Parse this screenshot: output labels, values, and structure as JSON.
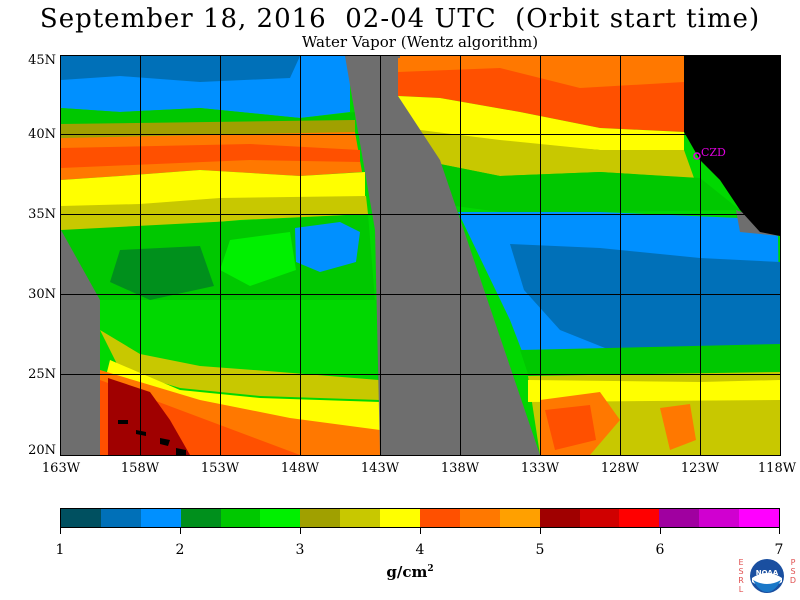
{
  "title": "September 18, 2016  02-04 UTC  (Orbit start time)",
  "subtitle": "Water Vapor (Wentz algorithm)",
  "map": {
    "lat_labels": [
      "45N",
      "40N",
      "35N",
      "30N",
      "25N",
      "20N"
    ],
    "lon_labels": [
      "163W",
      "158W",
      "153W",
      "148W",
      "143W",
      "138W",
      "133W",
      "128W",
      "123W",
      "118W"
    ],
    "marker_label": "CZD",
    "marker_color": "#e000e0",
    "land_color": "#000000",
    "missing_data_color": "#6e6e6e"
  },
  "colorbar": {
    "colors": [
      "#005060",
      "#0070b8",
      "#0090ff",
      "#00901c",
      "#00c800",
      "#00f000",
      "#a0a000",
      "#c8c800",
      "#ffff00",
      "#ff5000",
      "#ff7800",
      "#ffa000",
      "#a00000",
      "#d00000",
      "#ff0000",
      "#a000a0",
      "#d000d0",
      "#ff00ff"
    ],
    "tick_labels": [
      "1",
      "2",
      "3",
      "4",
      "5",
      "6",
      "7"
    ],
    "units_base": "g/cm",
    "units_exp": "2"
  },
  "logo": {
    "left_letters": [
      "E",
      "S",
      "R",
      "L"
    ],
    "right_letters": [
      "P",
      "S",
      "D"
    ],
    "seal_text": "NOAA"
  }
}
